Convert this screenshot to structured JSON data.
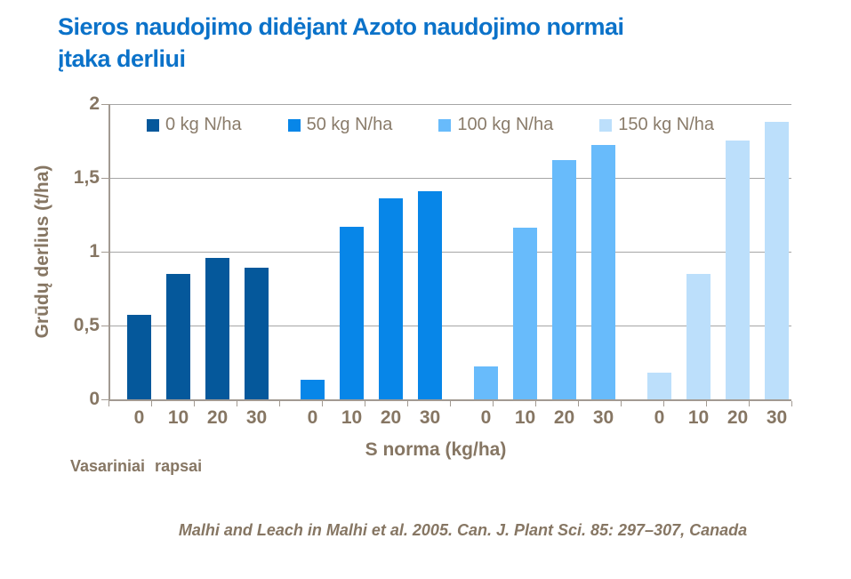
{
  "title": {
    "line1": "Sieros naudojimo didėjant Azoto naudojimo normai",
    "line2": "įtaka derliui"
  },
  "chart_data": {
    "type": "bar",
    "title": "Sieros naudojimo didėjant Azoto naudojimo normai įtaka derliui",
    "xlabel": "S norma (kg/ha)",
    "ylabel": "Grūdų derlius (t/ha)",
    "ylim": [
      0,
      2
    ],
    "grid": true,
    "legend_position": "top",
    "categories": [
      "0",
      "10",
      "20",
      "30"
    ],
    "yticks": [
      {
        "value": 0,
        "label": "0"
      },
      {
        "value": 0.5,
        "label": "0,5"
      },
      {
        "value": 1,
        "label": "1"
      },
      {
        "value": 1.5,
        "label": "1,5"
      },
      {
        "value": 2,
        "label": "2"
      }
    ],
    "series": [
      {
        "name": "0 kg N/ha",
        "color": "#05589b",
        "values": [
          0.57,
          0.85,
          0.96,
          0.89
        ]
      },
      {
        "name": "50 kg N/ha",
        "color": "#0786e8",
        "values": [
          0.13,
          1.17,
          1.36,
          1.41
        ]
      },
      {
        "name": "100 kg N/ha",
        "color": "#68bbfb",
        "values": [
          0.22,
          1.16,
          1.62,
          1.72
        ]
      },
      {
        "name": "150 kg N/ha",
        "color": "#bcdffb",
        "values": [
          0.18,
          0.85,
          1.75,
          1.88
        ]
      }
    ]
  },
  "labels": {
    "x_axis_title": "S norma (kg/ha)",
    "y_axis_title": "Grūdų derlius (t/ha)",
    "crop": "Vasariniai rapsai",
    "citation": "Malhi and Leach in Malhi et al. 2005. Can. J. Plant Sci. 85: 297–307, Canada"
  },
  "colors": {
    "title": "#0b72c9",
    "axis_text": "#867663",
    "legend_text": "#8a7c6b",
    "gridline": "#a6a6a6",
    "axis_line": "#a29a92"
  }
}
